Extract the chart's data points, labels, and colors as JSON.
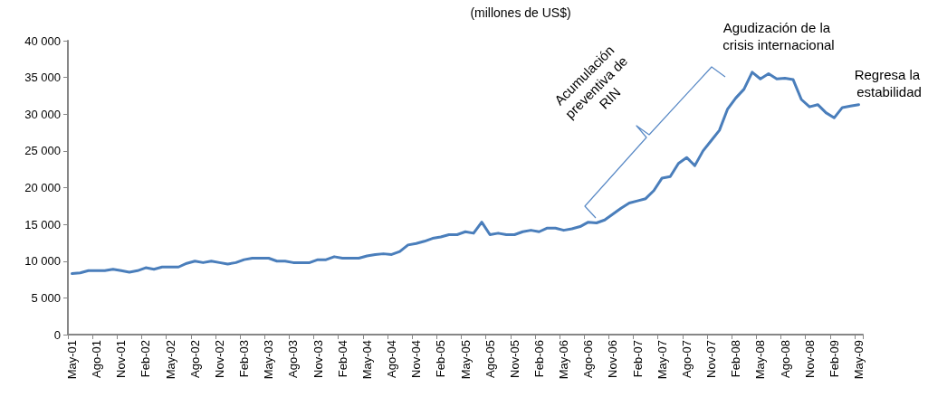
{
  "chart_data": {
    "type": "line",
    "title": "(millones de US$)",
    "annotations": [
      "Acumulación preventiva de RIN",
      "Agudización de la crisis internacional",
      "Regresa la estabilidad"
    ],
    "categories": [
      "May-01",
      null,
      null,
      "Ago-01",
      null,
      null,
      "Nov-01",
      null,
      null,
      "Feb-02",
      null,
      null,
      "May-02",
      null,
      null,
      "Ago-02",
      null,
      null,
      "Nov-02",
      null,
      null,
      "Feb-03",
      null,
      null,
      "May-03",
      null,
      null,
      "Ago-03",
      null,
      null,
      "Nov-03",
      null,
      null,
      "Feb-04",
      null,
      null,
      "May-04",
      null,
      null,
      "Ago-04",
      null,
      null,
      "Nov-04",
      null,
      null,
      "Feb-05",
      null,
      null,
      "May-05",
      null,
      null,
      "Ago-05",
      null,
      null,
      "Nov-05",
      null,
      null,
      "Feb-06",
      null,
      null,
      "May-06",
      null,
      null,
      "Ago-06",
      null,
      null,
      "Nov-06",
      null,
      null,
      "Feb-07",
      null,
      null,
      "May-07",
      null,
      null,
      "Ago-07",
      null,
      null,
      "Nov-07",
      null,
      null,
      "Feb-08",
      null,
      null,
      "May-08",
      null,
      null,
      "Ago-08",
      null,
      null,
      "Nov-08",
      null,
      null,
      "Feb-09",
      null,
      null,
      "May-09"
    ],
    "series": [
      {
        "color": "#4a7ebb",
        "values": [
          8300,
          8400,
          8700,
          8700,
          8700,
          8900,
          8700,
          8500,
          8700,
          9100,
          8900,
          9200,
          9200,
          9200,
          9700,
          10000,
          9800,
          10000,
          9800,
          9600,
          9800,
          10200,
          10400,
          10400,
          10400,
          10000,
          10000,
          9800,
          9800,
          9800,
          10200,
          10200,
          10600,
          10400,
          10400,
          10400,
          10700,
          10900,
          11000,
          10900,
          11300,
          12200,
          12400,
          12700,
          13100,
          13300,
          13600,
          13600,
          14000,
          13800,
          15300,
          13600,
          13800,
          13600,
          13600,
          14000,
          14200,
          14000,
          14500,
          14500,
          14200,
          14400,
          14700,
          15300,
          15200,
          15600,
          16400,
          17200,
          17900,
          18200,
          18500,
          19600,
          21300,
          21500,
          23300,
          24100,
          23000,
          25000,
          26400,
          27800,
          30700,
          32200,
          33400,
          35700,
          34800,
          35500,
          34800,
          34900,
          34700,
          32000,
          31000,
          31300,
          30200,
          29500,
          30900,
          31100,
          31300
        ]
      }
    ],
    "ylim": [
      0,
      40000
    ],
    "yticks": [
      {
        "value": 0,
        "label": "0"
      },
      {
        "value": 5000,
        "label": "5 000"
      },
      {
        "value": 10000,
        "label": "10 000"
      },
      {
        "value": 15000,
        "label": "15 000"
      },
      {
        "value": 20000,
        "label": "20 000"
      },
      {
        "value": 25000,
        "label": "25 000"
      },
      {
        "value": 30000,
        "label": "30 000"
      },
      {
        "value": 35000,
        "label": "35 000"
      },
      {
        "value": 40000,
        "label": "40 000"
      }
    ],
    "grid": false,
    "marker": "none",
    "line_style": "solid"
  }
}
